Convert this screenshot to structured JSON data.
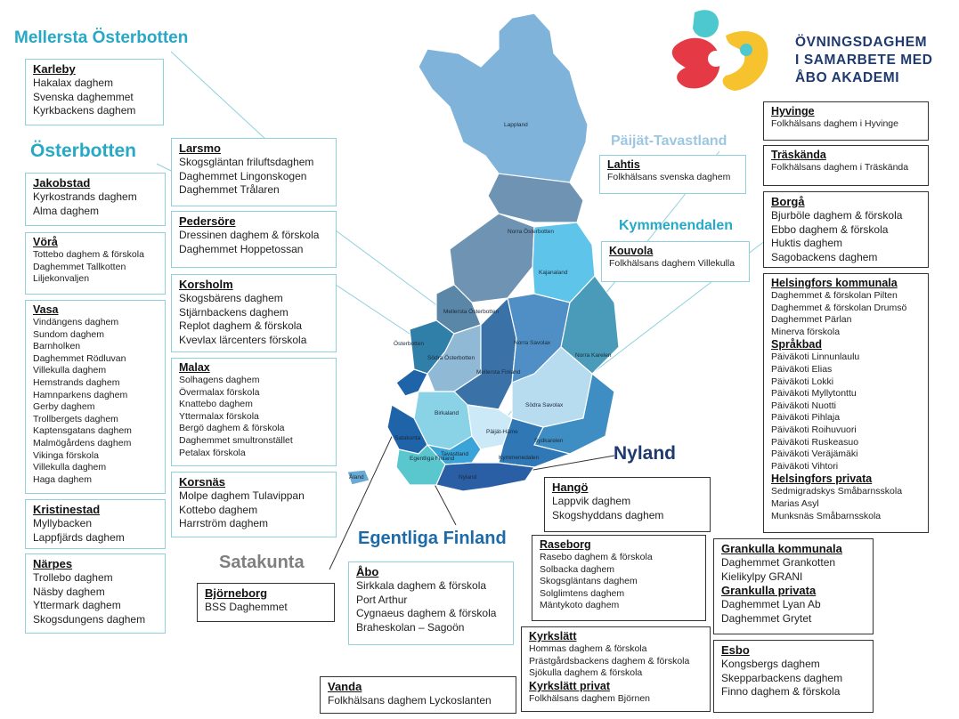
{
  "brand": {
    "line1": "ÖVNINGSDAGHEM",
    "line2": "I SAMARBETE MED",
    "line3": "ÅBO AKADEMI"
  },
  "regions": {
    "mellersta": "Mellersta Österbotten",
    "osterbotten": "Österbotten",
    "paijat": "Päijät-Tavastland",
    "kymmene": "Kymmenendalen",
    "nyland": "Nyland",
    "egentliga": "Egentliga Finland",
    "satakunta": "Satakunta"
  },
  "map_labels": {
    "lappland": "Lappland",
    "norra_osterbotten": "Norra Österbotten",
    "kajanaland": "Kajanaland",
    "mellersta_osterbotten": "Mellersta Österbotten",
    "osterbotten": "Österbotten",
    "sodra_osterbotten": "Södra Österbotten",
    "mellersta_finland": "Mellersta Finland",
    "norra_savolax": "Norra Savolax",
    "norra_karelen": "Norra Karelen",
    "birkaland": "Birkaland",
    "sodra_savolax": "Södra Savolax",
    "paijat_hame": "Päijät-Häme",
    "sodra_karelen": "Sydkarelen",
    "satakunta": "Satakunta",
    "tavastland": "Tavastland",
    "egentliga_finland": "Egentliga Finland",
    "kymmenedalen": "Kymmenedalen",
    "nyland": "Nyland",
    "aland": "Åland"
  },
  "boxes": {
    "karleby": {
      "title": "Karleby",
      "items": [
        "Hakalax daghem",
        "Svenska daghemmet",
        "Kyrkbackens daghem"
      ]
    },
    "jakobstad": {
      "title": "Jakobstad",
      "items": [
        "Kyrkostrands daghem",
        "Alma daghem"
      ]
    },
    "vora": {
      "title": "Vörå",
      "items": [
        "Tottebo daghem & förskola",
        "Daghemmet Tallkotten",
        "Liljekonvaljen"
      ]
    },
    "vasa": {
      "title": "Vasa",
      "items": [
        "Vindängens daghem",
        "Sundom daghem",
        "Barnholken",
        "Daghemmet Rödluvan",
        "Villekulla daghem",
        "Hemstrands daghem",
        "Hamnparkens daghem",
        "Gerby daghem",
        "Trollbergets daghem",
        "Kaptensgatans daghem",
        "Malmögårdens daghem",
        "Vikinga förskola",
        "Villekulla daghem",
        "Haga daghem"
      ]
    },
    "kristinestad": {
      "title": "Kristinestad",
      "items": [
        "Myllybacken",
        "Lappfjärds daghem"
      ]
    },
    "narpes": {
      "title": "Närpes",
      "items": [
        "Trollebo daghem",
        "Näsby daghem",
        "Yttermark daghem",
        "Skogsdungens daghem"
      ]
    },
    "larsmo": {
      "title": "Larsmo",
      "items": [
        "Skogsgläntan friluftsdaghem",
        "Daghemmet Lingonskogen",
        "Daghemmet Trålaren"
      ]
    },
    "pedersore": {
      "title": "Pedersöre",
      "items": [
        "Dressinen daghem & förskola",
        "Daghemmet Hoppetossan"
      ]
    },
    "korsholm": {
      "title": "Korsholm",
      "items": [
        "Skogsbärens daghem",
        "Stjärnbackens daghem",
        "Replot daghem & förskola",
        "Kvevlax lärcenters förskola"
      ]
    },
    "malax": {
      "title": "Malax",
      "items": [
        "Solhagens daghem",
        "Övermalax förskola",
        "Knattebo daghem",
        "Yttermalax förskola",
        "Bergö daghem & förskola",
        "Daghemmet smultronstället",
        "Petalax förskola"
      ]
    },
    "korsnas": {
      "title": "Korsnäs",
      "items": [
        "Molpe daghem Tulavippan",
        "Kottebo daghem",
        "Harrström daghem"
      ]
    },
    "bjorneborg": {
      "title": "Björneborg",
      "items": [
        "BSS Daghemmet"
      ]
    },
    "abo": {
      "title": "Åbo",
      "items": [
        "Sirkkala daghem & förskola",
        "Port Arthur",
        "Cygnaeus daghem & förskola",
        "Braheskolan – Sagoön"
      ]
    },
    "lahtis": {
      "title": "Lahtis",
      "items": [
        "Folkhälsans svenska daghem"
      ]
    },
    "kouvola": {
      "title": "Kouvola",
      "items": [
        "Folkhälsans daghem Villekulla"
      ]
    },
    "hango": {
      "title": "Hangö",
      "items": [
        "Lappvik daghem",
        "Skogshyddans daghem"
      ]
    },
    "raseborg": {
      "title": "Raseborg",
      "items": [
        "Rasebo daghem & förskola",
        "Solbacka daghem",
        "Skogsgläntans daghem",
        "Solglimtens daghem",
        "Mäntykoto daghem"
      ]
    },
    "kyrkslatt": {
      "title": "Kyrkslätt",
      "items": [
        "Hommas daghem & förskola",
        "Prästgårdsbackens daghem & förskola",
        "Sjökulla daghem & förskola"
      ],
      "title2": "Kyrkslätt privat",
      "items2": [
        "Folkhälsans daghem Björnen"
      ]
    },
    "vanda": {
      "title": "Vanda",
      "items": [
        "Folkhälsans daghem Lyckoslanten"
      ]
    },
    "hyvinge": {
      "title": "Hyvinge",
      "items": [
        "Folkhälsans daghem i Hyvinge"
      ]
    },
    "traskanda": {
      "title": "Träskända",
      "items": [
        "Folkhälsans daghem i Träskända"
      ]
    },
    "borga": {
      "title": "Borgå",
      "items": [
        "Bjurböle daghem & förskola",
        "Ebbo daghem & förskola",
        "Huktis daghem",
        "Sagobackens daghem"
      ]
    },
    "helsingfors": {
      "title": "Helsingfors kommunala",
      "items": [
        "Daghemmet & förskolan Pilten",
        "Daghemmet & förskolan Drumsö",
        "Daghemmet Pärlan",
        "Minerva förskola"
      ],
      "title2": "Språkbad",
      "items2": [
        "Päiväkoti Linnunlaulu",
        "Päiväkoti Elias",
        "Päiväkoti Lokki",
        "Päiväkoti Myllytonttu",
        "Päiväkoti Nuotti",
        "Päiväkoti Pihlaja",
        "Päiväkoti Roihuvuori",
        "Päiväkoti Ruskeasuo",
        "Päiväkoti Veräjämäki",
        "Päiväkoti Vihtori"
      ],
      "title3": "Helsingfors privata",
      "items3": [
        "Sedmigradskys Småbarnsskola",
        "Marias Asyl",
        "Munksnäs Småbarnsskola"
      ]
    },
    "grankulla": {
      "title": "Grankulla kommunala",
      "items": [
        "Daghemmet Grankotten",
        "Kielikylpy GRANI"
      ],
      "title2": "Grankulla privata",
      "items2": [
        "Daghemmet Lyan Ab",
        "Daghemmet Grytet"
      ]
    },
    "esbo": {
      "title": "Esbo",
      "items": [
        "Kongsbergs daghem",
        "Skepparbackens daghem",
        "Finno daghem & förskola"
      ]
    }
  },
  "colors": {
    "teal": "#27a9c6",
    "navy": "#1e3a6e",
    "grey": "#7f7f7f",
    "light_blue": "#9cc7e2",
    "logo_teal": "#4ec8cf",
    "logo_red": "#e63946",
    "logo_yellow": "#f6c22d"
  }
}
